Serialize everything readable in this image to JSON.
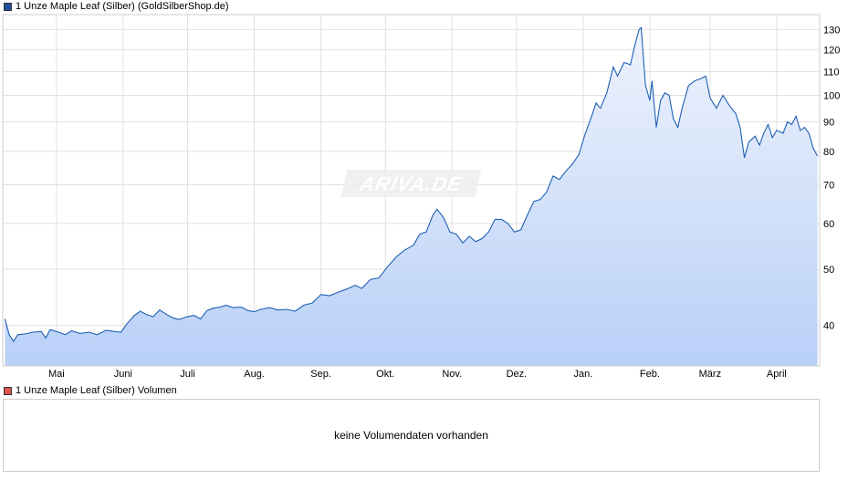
{
  "legend": {
    "price_label": "1 Unze Maple Leaf (Silber) (GoldSilberShop.de)",
    "price_color": "#1f4e9c",
    "volume_label": "1 Unze Maple Leaf (Silber) Volumen",
    "volume_color": "#d9534f"
  },
  "watermark": "ARIVA.DE",
  "volume_panel": {
    "message": "keine Volumendaten vorhanden"
  },
  "chart_data": {
    "type": "area",
    "y_scale": "log",
    "ylim": [
      34,
      138
    ],
    "y_ticks": [
      40,
      50,
      60,
      70,
      80,
      90,
      100,
      110,
      120,
      130
    ],
    "x_ticks": [
      "Mai",
      "Juni",
      "Juli",
      "Aug.",
      "Sep.",
      "Okt.",
      "Nov.",
      "Dez.",
      "Jan.",
      "Feb.",
      "März",
      "April"
    ],
    "grid": true,
    "line_color": "#1f5fb4",
    "fill_top_color": "#eef3fd",
    "fill_bottom_color": "#b9d0f7",
    "series": [
      {
        "points": [
          [
            "2024-04-07",
            41.0
          ],
          [
            "2024-04-09",
            38.5
          ],
          [
            "2024-04-11",
            37.5
          ],
          [
            "2024-04-13",
            38.5
          ],
          [
            "2024-04-16",
            38.6
          ],
          [
            "2024-04-20",
            38.9
          ],
          [
            "2024-04-24",
            39.0
          ],
          [
            "2024-04-26",
            38.0
          ],
          [
            "2024-04-28",
            39.3
          ],
          [
            "2024-05-02",
            38.9
          ],
          [
            "2024-05-05",
            38.5
          ],
          [
            "2024-05-08",
            39.1
          ],
          [
            "2024-05-12",
            38.7
          ],
          [
            "2024-05-16",
            38.9
          ],
          [
            "2024-05-20",
            38.5
          ],
          [
            "2024-05-24",
            39.2
          ],
          [
            "2024-05-28",
            39.0
          ],
          [
            "2024-05-31",
            38.9
          ],
          [
            "2024-06-03",
            40.3
          ],
          [
            "2024-06-06",
            41.5
          ],
          [
            "2024-06-09",
            42.3
          ],
          [
            "2024-06-12",
            41.7
          ],
          [
            "2024-06-15",
            41.4
          ],
          [
            "2024-06-18",
            42.5
          ],
          [
            "2024-06-21",
            41.8
          ],
          [
            "2024-06-24",
            41.2
          ],
          [
            "2024-06-27",
            40.9
          ],
          [
            "2024-06-30",
            41.3
          ],
          [
            "2024-07-04",
            41.6
          ],
          [
            "2024-07-07",
            41.0
          ],
          [
            "2024-07-10",
            42.4
          ],
          [
            "2024-07-13",
            42.8
          ],
          [
            "2024-07-16",
            43.0
          ],
          [
            "2024-07-19",
            43.3
          ],
          [
            "2024-07-22",
            42.9
          ],
          [
            "2024-07-26",
            43.0
          ],
          [
            "2024-07-29",
            42.4
          ],
          [
            "2024-08-01",
            42.2
          ],
          [
            "2024-08-04",
            42.6
          ],
          [
            "2024-08-08",
            42.9
          ],
          [
            "2024-08-12",
            42.5
          ],
          [
            "2024-08-16",
            42.6
          ],
          [
            "2024-08-20",
            42.3
          ],
          [
            "2024-08-24",
            43.3
          ],
          [
            "2024-08-28",
            43.7
          ],
          [
            "2024-09-01",
            45.2
          ],
          [
            "2024-09-05",
            45.0
          ],
          [
            "2024-09-09",
            45.6
          ],
          [
            "2024-09-13",
            46.2
          ],
          [
            "2024-09-17",
            46.9
          ],
          [
            "2024-09-20",
            46.3
          ],
          [
            "2024-09-24",
            48.0
          ],
          [
            "2024-09-28",
            48.3
          ],
          [
            "2024-10-02",
            50.5
          ],
          [
            "2024-10-06",
            52.5
          ],
          [
            "2024-10-10",
            54.0
          ],
          [
            "2024-10-14",
            55.0
          ],
          [
            "2024-10-17",
            57.5
          ],
          [
            "2024-10-20",
            58.0
          ],
          [
            "2024-10-23",
            62.0
          ],
          [
            "2024-10-25",
            63.5
          ],
          [
            "2024-10-28",
            61.5
          ],
          [
            "2024-10-31",
            58.0
          ],
          [
            "2024-11-03",
            57.5
          ],
          [
            "2024-11-06",
            55.5
          ],
          [
            "2024-11-09",
            57.0
          ],
          [
            "2024-11-12",
            55.8
          ],
          [
            "2024-11-15",
            56.5
          ],
          [
            "2024-11-18",
            58.0
          ],
          [
            "2024-11-21",
            61.0
          ],
          [
            "2024-11-24",
            61.0
          ],
          [
            "2024-11-27",
            60.0
          ],
          [
            "2024-11-30",
            58.0
          ],
          [
            "2024-12-03",
            58.5
          ],
          [
            "2024-12-06",
            62.0
          ],
          [
            "2024-12-09",
            65.5
          ],
          [
            "2024-12-12",
            66.0
          ],
          [
            "2024-12-15",
            68.0
          ],
          [
            "2024-12-18",
            72.5
          ],
          [
            "2024-12-21",
            71.5
          ],
          [
            "2024-12-24",
            74.0
          ],
          [
            "2024-12-27",
            76.0
          ],
          [
            "2024-12-30",
            79.0
          ],
          [
            "2025-01-02",
            86.0
          ],
          [
            "2025-01-04",
            90.0
          ],
          [
            "2025-01-07",
            97.0
          ],
          [
            "2025-01-09",
            95.0
          ],
          [
            "2025-01-12",
            101.0
          ],
          [
            "2025-01-15",
            112.0
          ],
          [
            "2025-01-17",
            108.0
          ],
          [
            "2025-01-20",
            114.0
          ],
          [
            "2025-01-23",
            113.0
          ],
          [
            "2025-01-25",
            122.0
          ],
          [
            "2025-01-27",
            130.0
          ],
          [
            "2025-01-28",
            131.0
          ],
          [
            "2025-01-29",
            116.0
          ],
          [
            "2025-01-30",
            104.0
          ],
          [
            "2025-02-01",
            98.0
          ],
          [
            "2025-02-02",
            106.0
          ],
          [
            "2025-02-04",
            88.0
          ],
          [
            "2025-02-06",
            98.0
          ],
          [
            "2025-02-08",
            101.0
          ],
          [
            "2025-02-10",
            100.0
          ],
          [
            "2025-02-12",
            91.0
          ],
          [
            "2025-02-14",
            88.0
          ],
          [
            "2025-02-16",
            95.0
          ],
          [
            "2025-02-19",
            104.0
          ],
          [
            "2025-02-22",
            106.0
          ],
          [
            "2025-02-25",
            107.0
          ],
          [
            "2025-02-27",
            108.0
          ],
          [
            "2025-03-01",
            99.0
          ],
          [
            "2025-03-04",
            95.0
          ],
          [
            "2025-03-07",
            100.0
          ],
          [
            "2025-03-10",
            96.0
          ],
          [
            "2025-03-13",
            93.0
          ],
          [
            "2025-03-15",
            88.0
          ],
          [
            "2025-03-17",
            78.0
          ],
          [
            "2025-03-19",
            83.0
          ],
          [
            "2025-03-22",
            85.0
          ],
          [
            "2025-03-24",
            82.0
          ],
          [
            "2025-03-26",
            86.0
          ],
          [
            "2025-03-28",
            89.0
          ],
          [
            "2025-03-30",
            84.5
          ],
          [
            "2025-04-01",
            87.0
          ],
          [
            "2025-04-04",
            86.0
          ],
          [
            "2025-04-06",
            90.0
          ],
          [
            "2025-04-08",
            89.0
          ],
          [
            "2025-04-10",
            92.0
          ],
          [
            "2025-04-12",
            87.0
          ],
          [
            "2025-04-14",
            88.0
          ],
          [
            "2025-04-16",
            86.0
          ],
          [
            "2025-04-18",
            81.0
          ],
          [
            "2025-04-20",
            78.5
          ]
        ]
      }
    ]
  }
}
